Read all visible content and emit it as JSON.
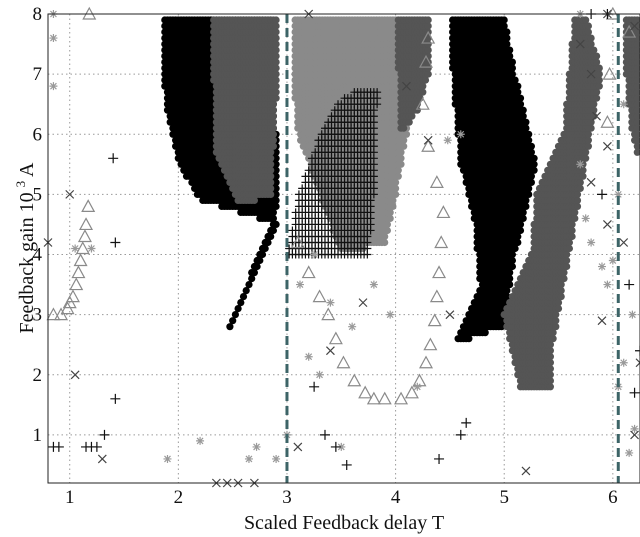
{
  "chart_data": {
    "type": "scatter",
    "xlabel": "Scaled Feedback delay T",
    "ylabel": "Feedback gain",
    "ylabel_suffix": "10",
    "ylabel_exp": "3",
    "ylabel_unit": "A",
    "xlim": [
      0.8,
      6.25
    ],
    "ylim": [
      0.2,
      8.0
    ],
    "x_ticks": [
      1,
      2,
      3,
      4,
      5,
      6
    ],
    "x_tick_labels": [
      "1",
      "2",
      "3",
      "4",
      "5",
      "6"
    ],
    "y_ticks": [
      1,
      2,
      3,
      4,
      5,
      6,
      7,
      8
    ],
    "y_tick_labels": [
      "1",
      "2",
      "3",
      "4",
      "5",
      "6",
      "7",
      "8"
    ],
    "grid": true,
    "vertical_lines": [
      3.0,
      6.05
    ],
    "vertical_line_color": "#3d6467",
    "colors": {
      "black": "#000000",
      "dark_gray": "#555555",
      "mid_gray": "#8a8a8a",
      "light_gray": "#9a9a9a",
      "plus": "#111111",
      "cross": "#444444"
    },
    "dot_regions": [
      {
        "shade": "black",
        "points": [
          [
            2.25,
            1.8
          ],
          [
            2.9,
            4.5
          ],
          [
            2.2,
            4.9
          ],
          [
            2.0,
            5.5
          ],
          [
            1.92,
            6.2
          ],
          [
            1.88,
            6.5
          ],
          [
            1.85,
            8.0
          ],
          [
            2.85,
            8.0
          ],
          [
            2.9,
            6.0
          ],
          [
            2.92,
            4.8
          ]
        ]
      },
      {
        "shade": "dark_gray",
        "points": [
          [
            2.55,
            4.8
          ],
          [
            2.35,
            5.6
          ],
          [
            2.3,
            8.0
          ],
          [
            2.9,
            8.0
          ],
          [
            2.9,
            6.6
          ],
          [
            2.85,
            5.0
          ]
        ]
      },
      {
        "shade": "black",
        "points": [
          [
            4.55,
            2.5
          ],
          [
            4.78,
            3.5
          ],
          [
            4.72,
            4.6
          ],
          [
            4.6,
            5.5
          ],
          [
            4.5,
            7.5
          ],
          [
            4.52,
            8.0
          ],
          [
            5.0,
            8.0
          ],
          [
            5.1,
            7.0
          ],
          [
            5.3,
            5.5
          ],
          [
            5.1,
            4.0
          ],
          [
            5.0,
            2.8
          ]
        ]
      },
      {
        "shade": "dark_gray",
        "points": [
          [
            5.15,
            1.8
          ],
          [
            5.0,
            3.0
          ],
          [
            5.25,
            4.0
          ],
          [
            5.3,
            5.0
          ],
          [
            5.55,
            6.0
          ],
          [
            5.65,
            8.0
          ],
          [
            5.0,
            8.0
          ],
          [
            5.75,
            8.0
          ],
          [
            5.9,
            7.0
          ],
          [
            5.75,
            5.5
          ],
          [
            5.6,
            4.0
          ],
          [
            5.45,
            2.5
          ],
          [
            5.45,
            1.8
          ]
        ]
      },
      {
        "shade": "mid_gray",
        "points": [
          [
            3.5,
            4.0
          ],
          [
            3.3,
            5.0
          ],
          [
            3.1,
            6.0
          ],
          [
            3.05,
            7.0
          ],
          [
            3.05,
            8.0
          ],
          [
            4.0,
            8.0
          ],
          [
            4.15,
            7.0
          ],
          [
            4.1,
            6.0
          ],
          [
            4.0,
            5.0
          ],
          [
            3.9,
            4.2
          ]
        ]
      },
      {
        "shade": "dark_gray",
        "points": [
          [
            4.0,
            8.0
          ],
          [
            4.3,
            8.0
          ],
          [
            4.3,
            7.0
          ],
          [
            4.2,
            6.4
          ],
          [
            4.05,
            6.0
          ]
        ]
      },
      {
        "shade": "dark_gray",
        "points": [
          [
            6.1,
            8.0
          ],
          [
            6.25,
            8.0
          ],
          [
            6.25,
            5.5
          ],
          [
            6.18,
            6.0
          ],
          [
            6.12,
            7.0
          ]
        ]
      }
    ],
    "plus_region": {
      "points": [
        [
          3.0,
          4.0
        ],
        [
          3.1,
          5.0
        ],
        [
          3.3,
          6.0
        ],
        [
          3.5,
          6.6
        ],
        [
          3.7,
          6.8
        ],
        [
          3.85,
          6.8
        ],
        [
          3.8,
          6.0
        ],
        [
          3.8,
          5.0
        ],
        [
          3.75,
          4.0
        ]
      ]
    },
    "triangle_series": [
      [
        0.85,
        3.0
      ],
      [
        0.92,
        3.0
      ],
      [
        0.98,
        3.1
      ],
      [
        1.0,
        3.2
      ],
      [
        1.03,
        3.3
      ],
      [
        1.06,
        3.5
      ],
      [
        1.08,
        3.7
      ],
      [
        1.1,
        3.9
      ],
      [
        1.12,
        4.1
      ],
      [
        1.14,
        4.3
      ],
      [
        1.15,
        4.5
      ],
      [
        1.17,
        4.8
      ],
      [
        1.18,
        8.0
      ],
      [
        3.1,
        4.2
      ],
      [
        3.2,
        3.7
      ],
      [
        3.3,
        3.3
      ],
      [
        3.38,
        3.0
      ],
      [
        3.45,
        2.6
      ],
      [
        3.52,
        2.2
      ],
      [
        3.62,
        1.9
      ],
      [
        3.72,
        1.7
      ],
      [
        3.8,
        1.6
      ],
      [
        3.9,
        1.6
      ],
      [
        4.05,
        1.6
      ],
      [
        4.15,
        1.7
      ],
      [
        4.22,
        1.9
      ],
      [
        4.28,
        2.2
      ],
      [
        4.32,
        2.5
      ],
      [
        4.36,
        2.9
      ],
      [
        4.38,
        3.3
      ],
      [
        4.4,
        3.7
      ],
      [
        4.42,
        4.2
      ],
      [
        4.44,
        4.7
      ],
      [
        4.38,
        5.2
      ],
      [
        4.3,
        5.8
      ],
      [
        4.25,
        6.5
      ],
      [
        4.28,
        7.2
      ],
      [
        4.3,
        7.6
      ],
      [
        5.95,
        6.2
      ],
      [
        5.97,
        7.0
      ],
      [
        6.0,
        8.0
      ],
      [
        6.15,
        7.7
      ]
    ],
    "asterisk_series": [
      [
        0.85,
        8.0
      ],
      [
        0.85,
        7.6
      ],
      [
        0.85,
        6.8
      ],
      [
        1.05,
        4.1
      ],
      [
        1.2,
        4.1
      ],
      [
        1.9,
        0.6
      ],
      [
        2.2,
        0.9
      ],
      [
        2.65,
        0.6
      ],
      [
        2.72,
        0.8
      ],
      [
        2.9,
        0.6
      ],
      [
        3.0,
        1.0
      ],
      [
        3.2,
        2.3
      ],
      [
        3.3,
        2.0
      ],
      [
        3.12,
        3.5
      ],
      [
        3.25,
        4.0
      ],
      [
        3.4,
        3.2
      ],
      [
        3.6,
        2.8
      ],
      [
        3.8,
        3.5
      ],
      [
        3.95,
        3.0
      ],
      [
        4.2,
        1.8
      ],
      [
        3.5,
        0.8
      ],
      [
        4.48,
        5.9
      ],
      [
        4.6,
        6.0
      ],
      [
        5.7,
        5.5
      ],
      [
        5.75,
        4.6
      ],
      [
        5.8,
        4.2
      ],
      [
        5.9,
        3.8
      ],
      [
        5.95,
        3.5
      ],
      [
        6.0,
        3.9
      ],
      [
        6.05,
        1.8
      ],
      [
        6.1,
        2.2
      ],
      [
        6.15,
        0.7
      ],
      [
        6.2,
        1.1
      ],
      [
        6.18,
        3.0
      ],
      [
        6.05,
        5.0
      ],
      [
        6.1,
        6.5
      ],
      [
        5.7,
        8.0
      ]
    ],
    "cross_series": [
      [
        1.0,
        5.0
      ],
      [
        1.05,
        2.0
      ],
      [
        1.3,
        0.6
      ],
      [
        2.35,
        0.2
      ],
      [
        2.45,
        0.2
      ],
      [
        2.55,
        0.2
      ],
      [
        2.7,
        0.2
      ],
      [
        3.1,
        0.8
      ],
      [
        3.4,
        2.4
      ],
      [
        3.7,
        3.2
      ],
      [
        4.1,
        6.8
      ],
      [
        4.3,
        5.9
      ],
      [
        4.5,
        3.0
      ],
      [
        5.8,
        7.0
      ],
      [
        5.85,
        6.3
      ],
      [
        5.95,
        5.8
      ],
      [
        5.95,
        4.5
      ],
      [
        6.1,
        4.2
      ],
      [
        6.2,
        1.0
      ],
      [
        6.25,
        2.2
      ],
      [
        5.2,
        0.4
      ],
      [
        5.7,
        7.5
      ],
      [
        6.2,
        7.8
      ],
      [
        3.2,
        8.0
      ],
      [
        5.95,
        8.0
      ],
      [
        5.8,
        5.2
      ],
      [
        5.9,
        2.9
      ],
      [
        0.8,
        4.2
      ]
    ],
    "plus_scatter": [
      [
        0.85,
        0.8
      ],
      [
        0.9,
        0.8
      ],
      [
        1.15,
        0.8
      ],
      [
        1.2,
        0.8
      ],
      [
        1.25,
        0.8
      ],
      [
        1.32,
        1.0
      ],
      [
        1.42,
        1.6
      ],
      [
        1.42,
        4.2
      ],
      [
        1.4,
        5.6
      ],
      [
        3.25,
        1.8
      ],
      [
        3.35,
        1.0
      ],
      [
        3.45,
        0.8
      ],
      [
        3.55,
        0.5
      ],
      [
        4.4,
        0.6
      ],
      [
        4.6,
        1.0
      ],
      [
        4.65,
        1.2
      ],
      [
        5.8,
        8.0
      ],
      [
        5.95,
        8.0
      ],
      [
        6.2,
        1.7
      ],
      [
        6.25,
        2.4
      ],
      [
        6.15,
        3.5
      ],
      [
        5.9,
        5.0
      ]
    ]
  }
}
